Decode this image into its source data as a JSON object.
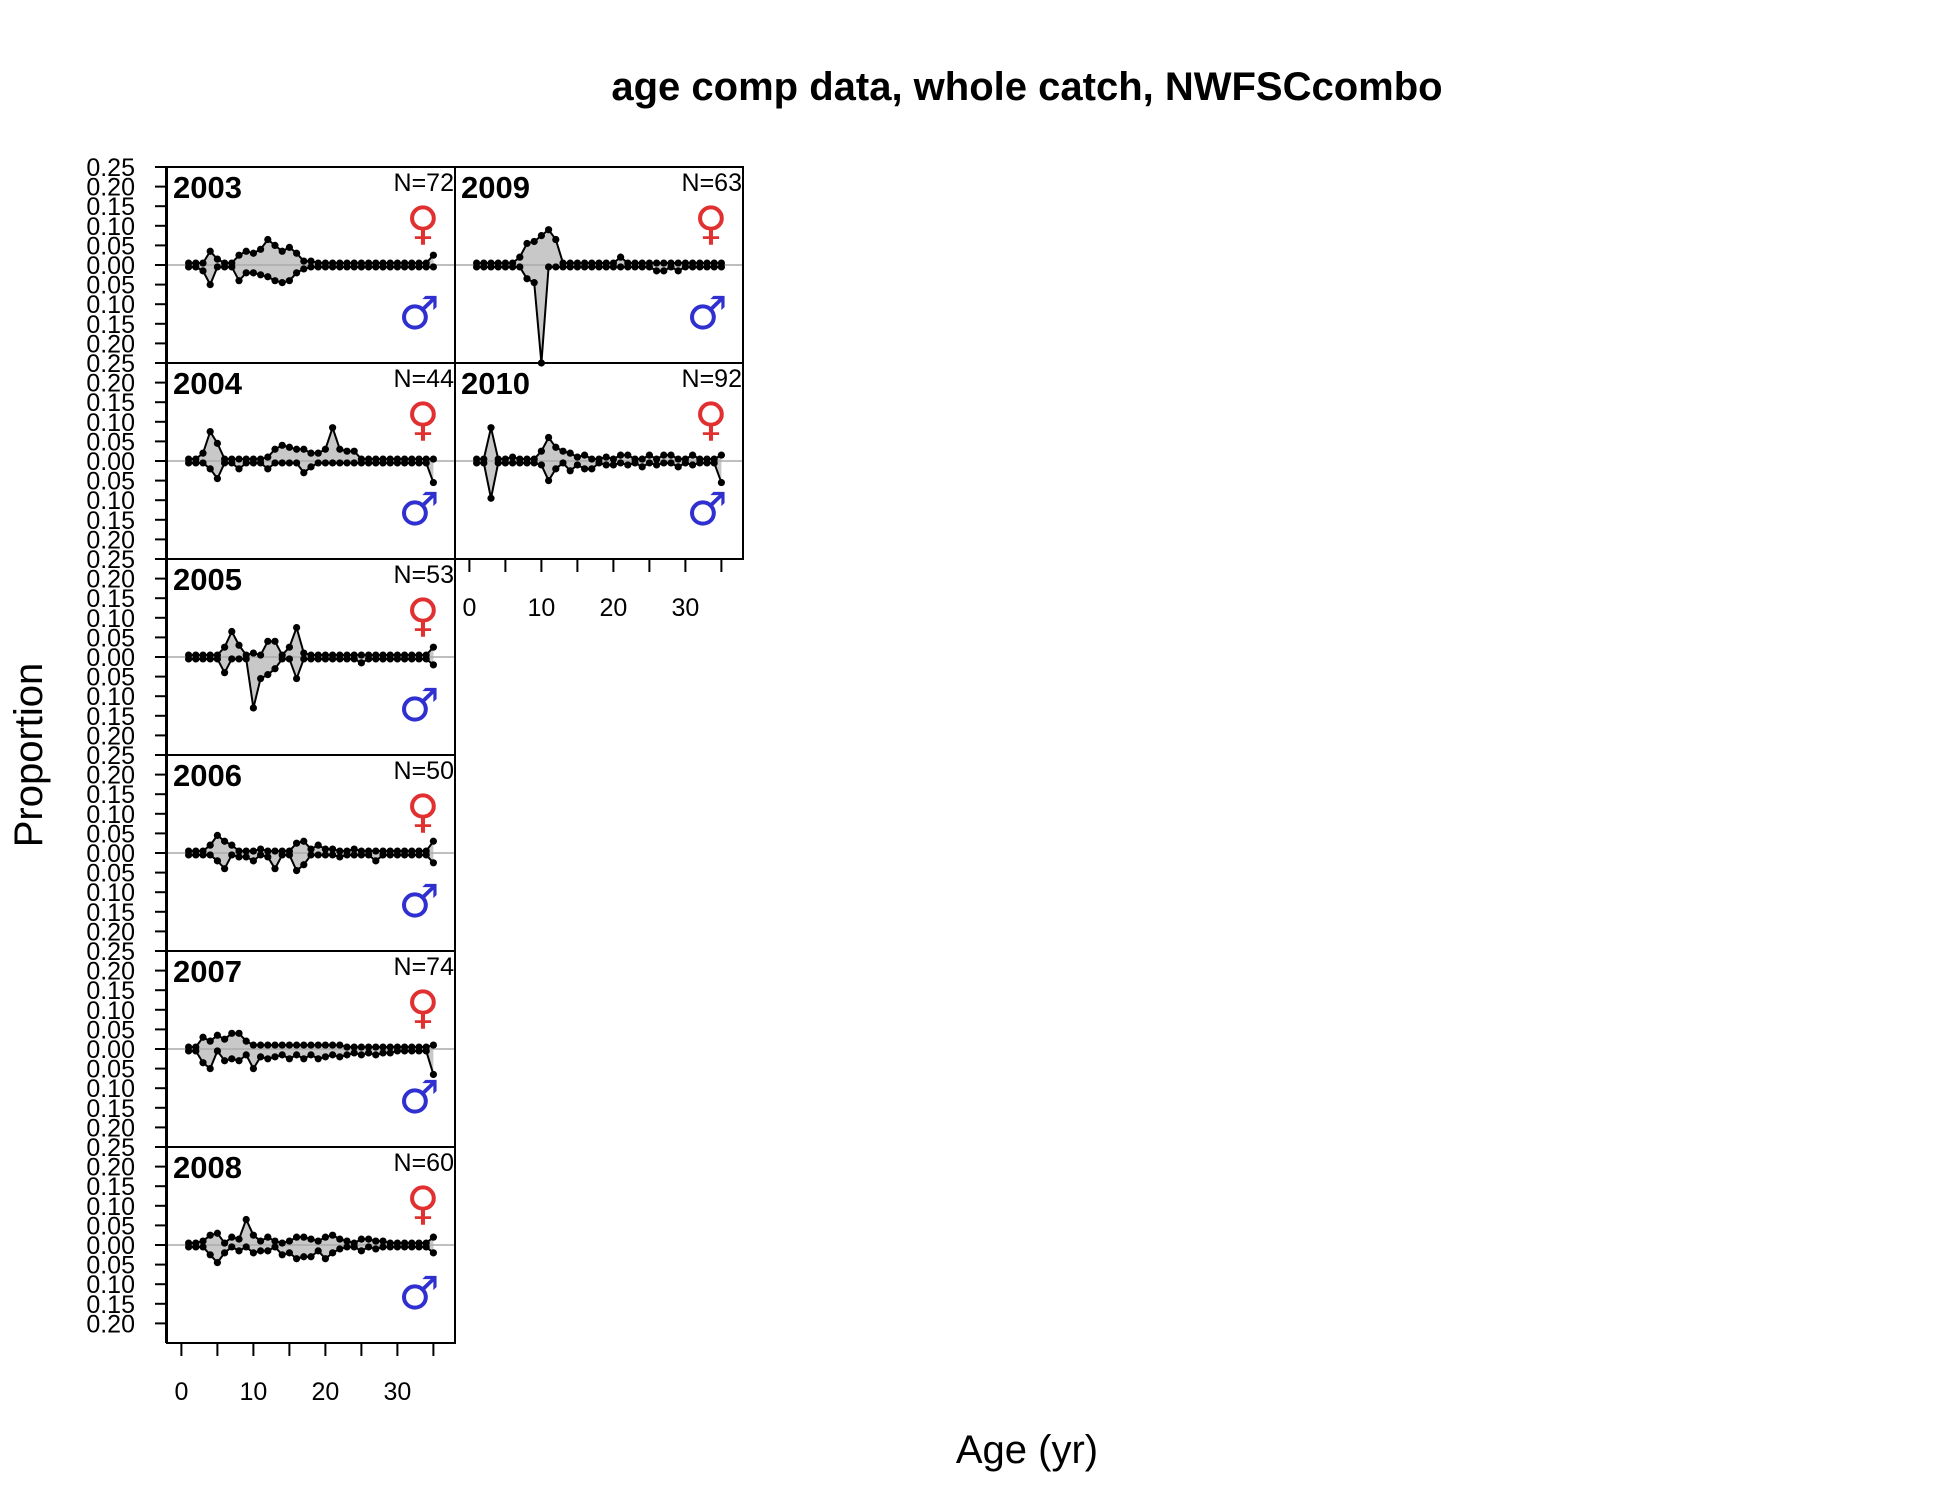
{
  "chart_data": {
    "type": "area",
    "title": "age comp data, whole catch, NWFSCcombo",
    "xlabel": "Age (yr)",
    "ylabel": "Proportion",
    "xlim": [
      -2,
      38
    ],
    "ylim": [
      -0.25,
      0.25
    ],
    "x_ticks": [
      0,
      10,
      20,
      30
    ],
    "x_tick_labels": [
      "0",
      "10",
      "20",
      "30"
    ],
    "y_ticks": [
      0.25,
      0.2,
      0.15,
      0.1,
      0.05,
      0.0,
      -0.05,
      -0.1,
      -0.15,
      -0.2
    ],
    "y_tick_labels": [
      "0.25",
      "0.20",
      "0.15",
      "0.10",
      "0.05",
      "0.00",
      "0.05",
      "0.10",
      "0.15",
      "0.20"
    ],
    "grid": false,
    "colors": {
      "fill": "#c8c8c8",
      "line": "#000000",
      "zero_line": "#aaaaaa",
      "female": "#e03030",
      "male": "#3030d0"
    },
    "sex_symbols": {
      "female": "♀",
      "male": "♂"
    },
    "ages": [
      1,
      2,
      3,
      4,
      5,
      6,
      7,
      8,
      9,
      10,
      11,
      12,
      13,
      14,
      15,
      16,
      17,
      18,
      19,
      20,
      21,
      22,
      23,
      24,
      25,
      26,
      27,
      28,
      29,
      30,
      31,
      32,
      33,
      34,
      35
    ],
    "panels": [
      {
        "year": "2003",
        "n_label": "N=72",
        "female": [
          0.005,
          0.005,
          0.005,
          0.035,
          0.015,
          0.005,
          0.005,
          0.025,
          0.035,
          0.03,
          0.04,
          0.065,
          0.05,
          0.035,
          0.045,
          0.03,
          0.01,
          0.01,
          0.005,
          0.005,
          0.005,
          0.005,
          0.005,
          0.005,
          0.005,
          0.005,
          0.005,
          0.005,
          0.005,
          0.005,
          0.005,
          0.005,
          0.005,
          0.005,
          0.025
        ],
        "male": [
          0.005,
          0.005,
          0.015,
          0.05,
          0.005,
          0.005,
          0.005,
          0.04,
          0.02,
          0.02,
          0.025,
          0.03,
          0.04,
          0.045,
          0.04,
          0.02,
          0.01,
          0.005,
          0.005,
          0.005,
          0.005,
          0.005,
          0.005,
          0.005,
          0.005,
          0.005,
          0.005,
          0.005,
          0.005,
          0.005,
          0.005,
          0.005,
          0.005,
          0.005,
          0.005
        ]
      },
      {
        "year": "2004",
        "n_label": "N=44",
        "female": [
          0.005,
          0.005,
          0.02,
          0.075,
          0.045,
          0.005,
          0.005,
          0.005,
          0.005,
          0.005,
          0.005,
          0.01,
          0.03,
          0.04,
          0.035,
          0.03,
          0.03,
          0.02,
          0.02,
          0.03,
          0.085,
          0.03,
          0.025,
          0.025,
          0.005,
          0.005,
          0.005,
          0.005,
          0.005,
          0.005,
          0.005,
          0.005,
          0.005,
          0.005,
          0.005
        ],
        "male": [
          0.005,
          0.005,
          0.005,
          0.02,
          0.045,
          0.005,
          0.005,
          0.02,
          0.005,
          0.005,
          0.005,
          0.02,
          0.005,
          0.005,
          0.005,
          0.005,
          0.03,
          0.015,
          0.005,
          0.005,
          0.005,
          0.005,
          0.005,
          0.005,
          0.005,
          0.005,
          0.005,
          0.005,
          0.005,
          0.005,
          0.005,
          0.005,
          0.005,
          0.005,
          0.055
        ]
      },
      {
        "year": "2005",
        "n_label": "N=53",
        "female": [
          0.005,
          0.005,
          0.005,
          0.005,
          0.005,
          0.025,
          0.065,
          0.03,
          0.005,
          0.01,
          0.005,
          0.04,
          0.04,
          0.005,
          0.025,
          0.075,
          0.01,
          0.005,
          0.005,
          0.005,
          0.005,
          0.005,
          0.005,
          0.005,
          0.005,
          0.005,
          0.005,
          0.005,
          0.005,
          0.005,
          0.005,
          0.005,
          0.005,
          0.005,
          0.025
        ],
        "male": [
          0.005,
          0.005,
          0.005,
          0.005,
          0.005,
          0.04,
          0.005,
          0.005,
          0.005,
          0.13,
          0.055,
          0.045,
          0.03,
          0.005,
          0.005,
          0.055,
          0.005,
          0.005,
          0.005,
          0.005,
          0.005,
          0.005,
          0.005,
          0.005,
          0.015,
          0.005,
          0.005,
          0.005,
          0.005,
          0.005,
          0.005,
          0.005,
          0.005,
          0.005,
          0.02
        ]
      },
      {
        "year": "2006",
        "n_label": "N=50",
        "female": [
          0.005,
          0.005,
          0.005,
          0.02,
          0.045,
          0.03,
          0.02,
          0.005,
          0.005,
          0.005,
          0.01,
          0.005,
          0.005,
          0.005,
          0.005,
          0.025,
          0.03,
          0.01,
          0.02,
          0.01,
          0.01,
          0.005,
          0.005,
          0.01,
          0.005,
          0.005,
          0.005,
          0.005,
          0.005,
          0.005,
          0.005,
          0.005,
          0.005,
          0.005,
          0.03
        ],
        "male": [
          0.005,
          0.005,
          0.005,
          0.005,
          0.02,
          0.04,
          0.005,
          0.01,
          0.01,
          0.02,
          0.005,
          0.01,
          0.04,
          0.005,
          0.005,
          0.045,
          0.03,
          0.005,
          0.005,
          0.005,
          0.005,
          0.01,
          0.005,
          0.005,
          0.005,
          0.005,
          0.02,
          0.005,
          0.005,
          0.005,
          0.005,
          0.005,
          0.005,
          0.005,
          0.025
        ]
      },
      {
        "year": "2007",
        "n_label": "N=74",
        "female": [
          0.005,
          0.005,
          0.03,
          0.02,
          0.035,
          0.025,
          0.04,
          0.04,
          0.02,
          0.01,
          0.01,
          0.01,
          0.01,
          0.01,
          0.01,
          0.01,
          0.01,
          0.01,
          0.01,
          0.01,
          0.01,
          0.01,
          0.005,
          0.005,
          0.005,
          0.005,
          0.005,
          0.005,
          0.005,
          0.005,
          0.005,
          0.005,
          0.005,
          0.005,
          0.01
        ],
        "male": [
          0.005,
          0.005,
          0.035,
          0.05,
          0.005,
          0.03,
          0.025,
          0.03,
          0.015,
          0.05,
          0.02,
          0.025,
          0.02,
          0.015,
          0.025,
          0.015,
          0.025,
          0.015,
          0.025,
          0.02,
          0.015,
          0.02,
          0.015,
          0.01,
          0.015,
          0.01,
          0.015,
          0.01,
          0.01,
          0.005,
          0.005,
          0.005,
          0.005,
          0.005,
          0.065
        ]
      },
      {
        "year": "2008",
        "n_label": "N=60",
        "female": [
          0.005,
          0.005,
          0.01,
          0.025,
          0.03,
          0.005,
          0.02,
          0.015,
          0.065,
          0.025,
          0.01,
          0.02,
          0.01,
          0.005,
          0.01,
          0.02,
          0.02,
          0.015,
          0.01,
          0.02,
          0.025,
          0.015,
          0.01,
          0.005,
          0.015,
          0.015,
          0.01,
          0.01,
          0.005,
          0.005,
          0.005,
          0.005,
          0.005,
          0.005,
          0.02
        ],
        "male": [
          0.005,
          0.005,
          0.005,
          0.025,
          0.045,
          0.02,
          0.005,
          0.015,
          0.005,
          0.02,
          0.015,
          0.015,
          0.005,
          0.025,
          0.02,
          0.035,
          0.03,
          0.03,
          0.015,
          0.035,
          0.02,
          0.01,
          0.005,
          0.005,
          0.015,
          0.005,
          0.01,
          0.005,
          0.005,
          0.005,
          0.005,
          0.005,
          0.005,
          0.005,
          0.02
        ]
      },
      {
        "year": "2009",
        "n_label": "N=63",
        "female": [
          0.005,
          0.005,
          0.005,
          0.005,
          0.005,
          0.005,
          0.02,
          0.055,
          0.06,
          0.075,
          0.09,
          0.065,
          0.005,
          0.005,
          0.005,
          0.005,
          0.005,
          0.005,
          0.005,
          0.005,
          0.02,
          0.005,
          0.005,
          0.005,
          0.005,
          0.005,
          0.005,
          0.005,
          0.005,
          0.005,
          0.005,
          0.005,
          0.005,
          0.005,
          0.005
        ],
        "male": [
          0.005,
          0.005,
          0.005,
          0.005,
          0.005,
          0.005,
          0.005,
          0.035,
          0.045,
          0.25,
          0.005,
          0.005,
          0.005,
          0.005,
          0.005,
          0.005,
          0.005,
          0.005,
          0.005,
          0.005,
          0.005,
          0.005,
          0.005,
          0.005,
          0.005,
          0.015,
          0.015,
          0.005,
          0.015,
          0.005,
          0.005,
          0.005,
          0.005,
          0.005,
          0.005
        ]
      },
      {
        "year": "2010",
        "n_label": "N=92",
        "female": [
          0.005,
          0.005,
          0.085,
          0.005,
          0.005,
          0.01,
          0.005,
          0.005,
          0.005,
          0.025,
          0.06,
          0.035,
          0.025,
          0.02,
          0.01,
          0.015,
          0.005,
          0.005,
          0.01,
          0.005,
          0.015,
          0.015,
          0.005,
          0.005,
          0.015,
          0.005,
          0.015,
          0.015,
          0.005,
          0.005,
          0.015,
          0.005,
          0.005,
          0.005,
          0.015
        ],
        "male": [
          0.005,
          0.005,
          0.095,
          0.005,
          0.005,
          0.005,
          0.005,
          0.005,
          0.005,
          0.01,
          0.05,
          0.02,
          0.005,
          0.025,
          0.01,
          0.02,
          0.02,
          0.005,
          0.01,
          0.01,
          0.005,
          0.01,
          0.005,
          0.015,
          0.005,
          0.01,
          0.005,
          0.005,
          0.015,
          0.005,
          0.01,
          0.005,
          0.005,
          0.005,
          0.055
        ]
      }
    ]
  }
}
